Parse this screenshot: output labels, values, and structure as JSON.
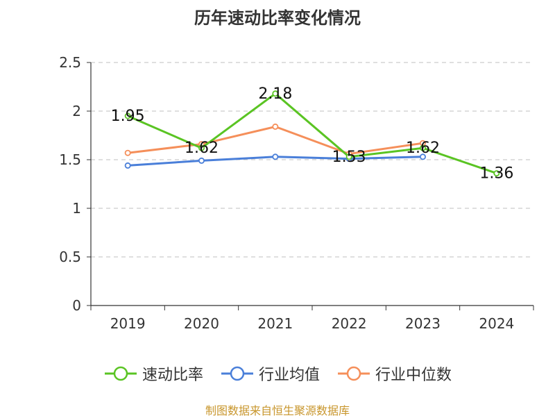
{
  "chart_data": {
    "type": "line",
    "title": "历年速动比率变化情况",
    "categories": [
      "2019",
      "2020",
      "2021",
      "2022",
      "2023",
      "2024"
    ],
    "ylim": [
      0,
      2.5
    ],
    "yticks": [
      "0",
      "0.5",
      "1",
      "1.5",
      "2",
      "2.5"
    ],
    "grid": true,
    "legend_position": "bottom",
    "series": [
      {
        "name": "速动比率",
        "color": "#5ac423",
        "values": [
          1.95,
          1.62,
          2.18,
          1.53,
          1.62,
          1.36
        ],
        "labels": [
          "1.95",
          "1.62",
          "2.18",
          "1.53",
          "1.62",
          "1.36"
        ]
      },
      {
        "name": "行业均值",
        "color": "#4a7fd9",
        "values": [
          1.44,
          1.49,
          1.53,
          1.51,
          1.53,
          null
        ]
      },
      {
        "name": "行业中位数",
        "color": "#f58f5a",
        "values": [
          1.57,
          1.66,
          1.84,
          1.56,
          1.67,
          null
        ]
      }
    ]
  },
  "source": "制图数据来自恒生聚源数据库"
}
